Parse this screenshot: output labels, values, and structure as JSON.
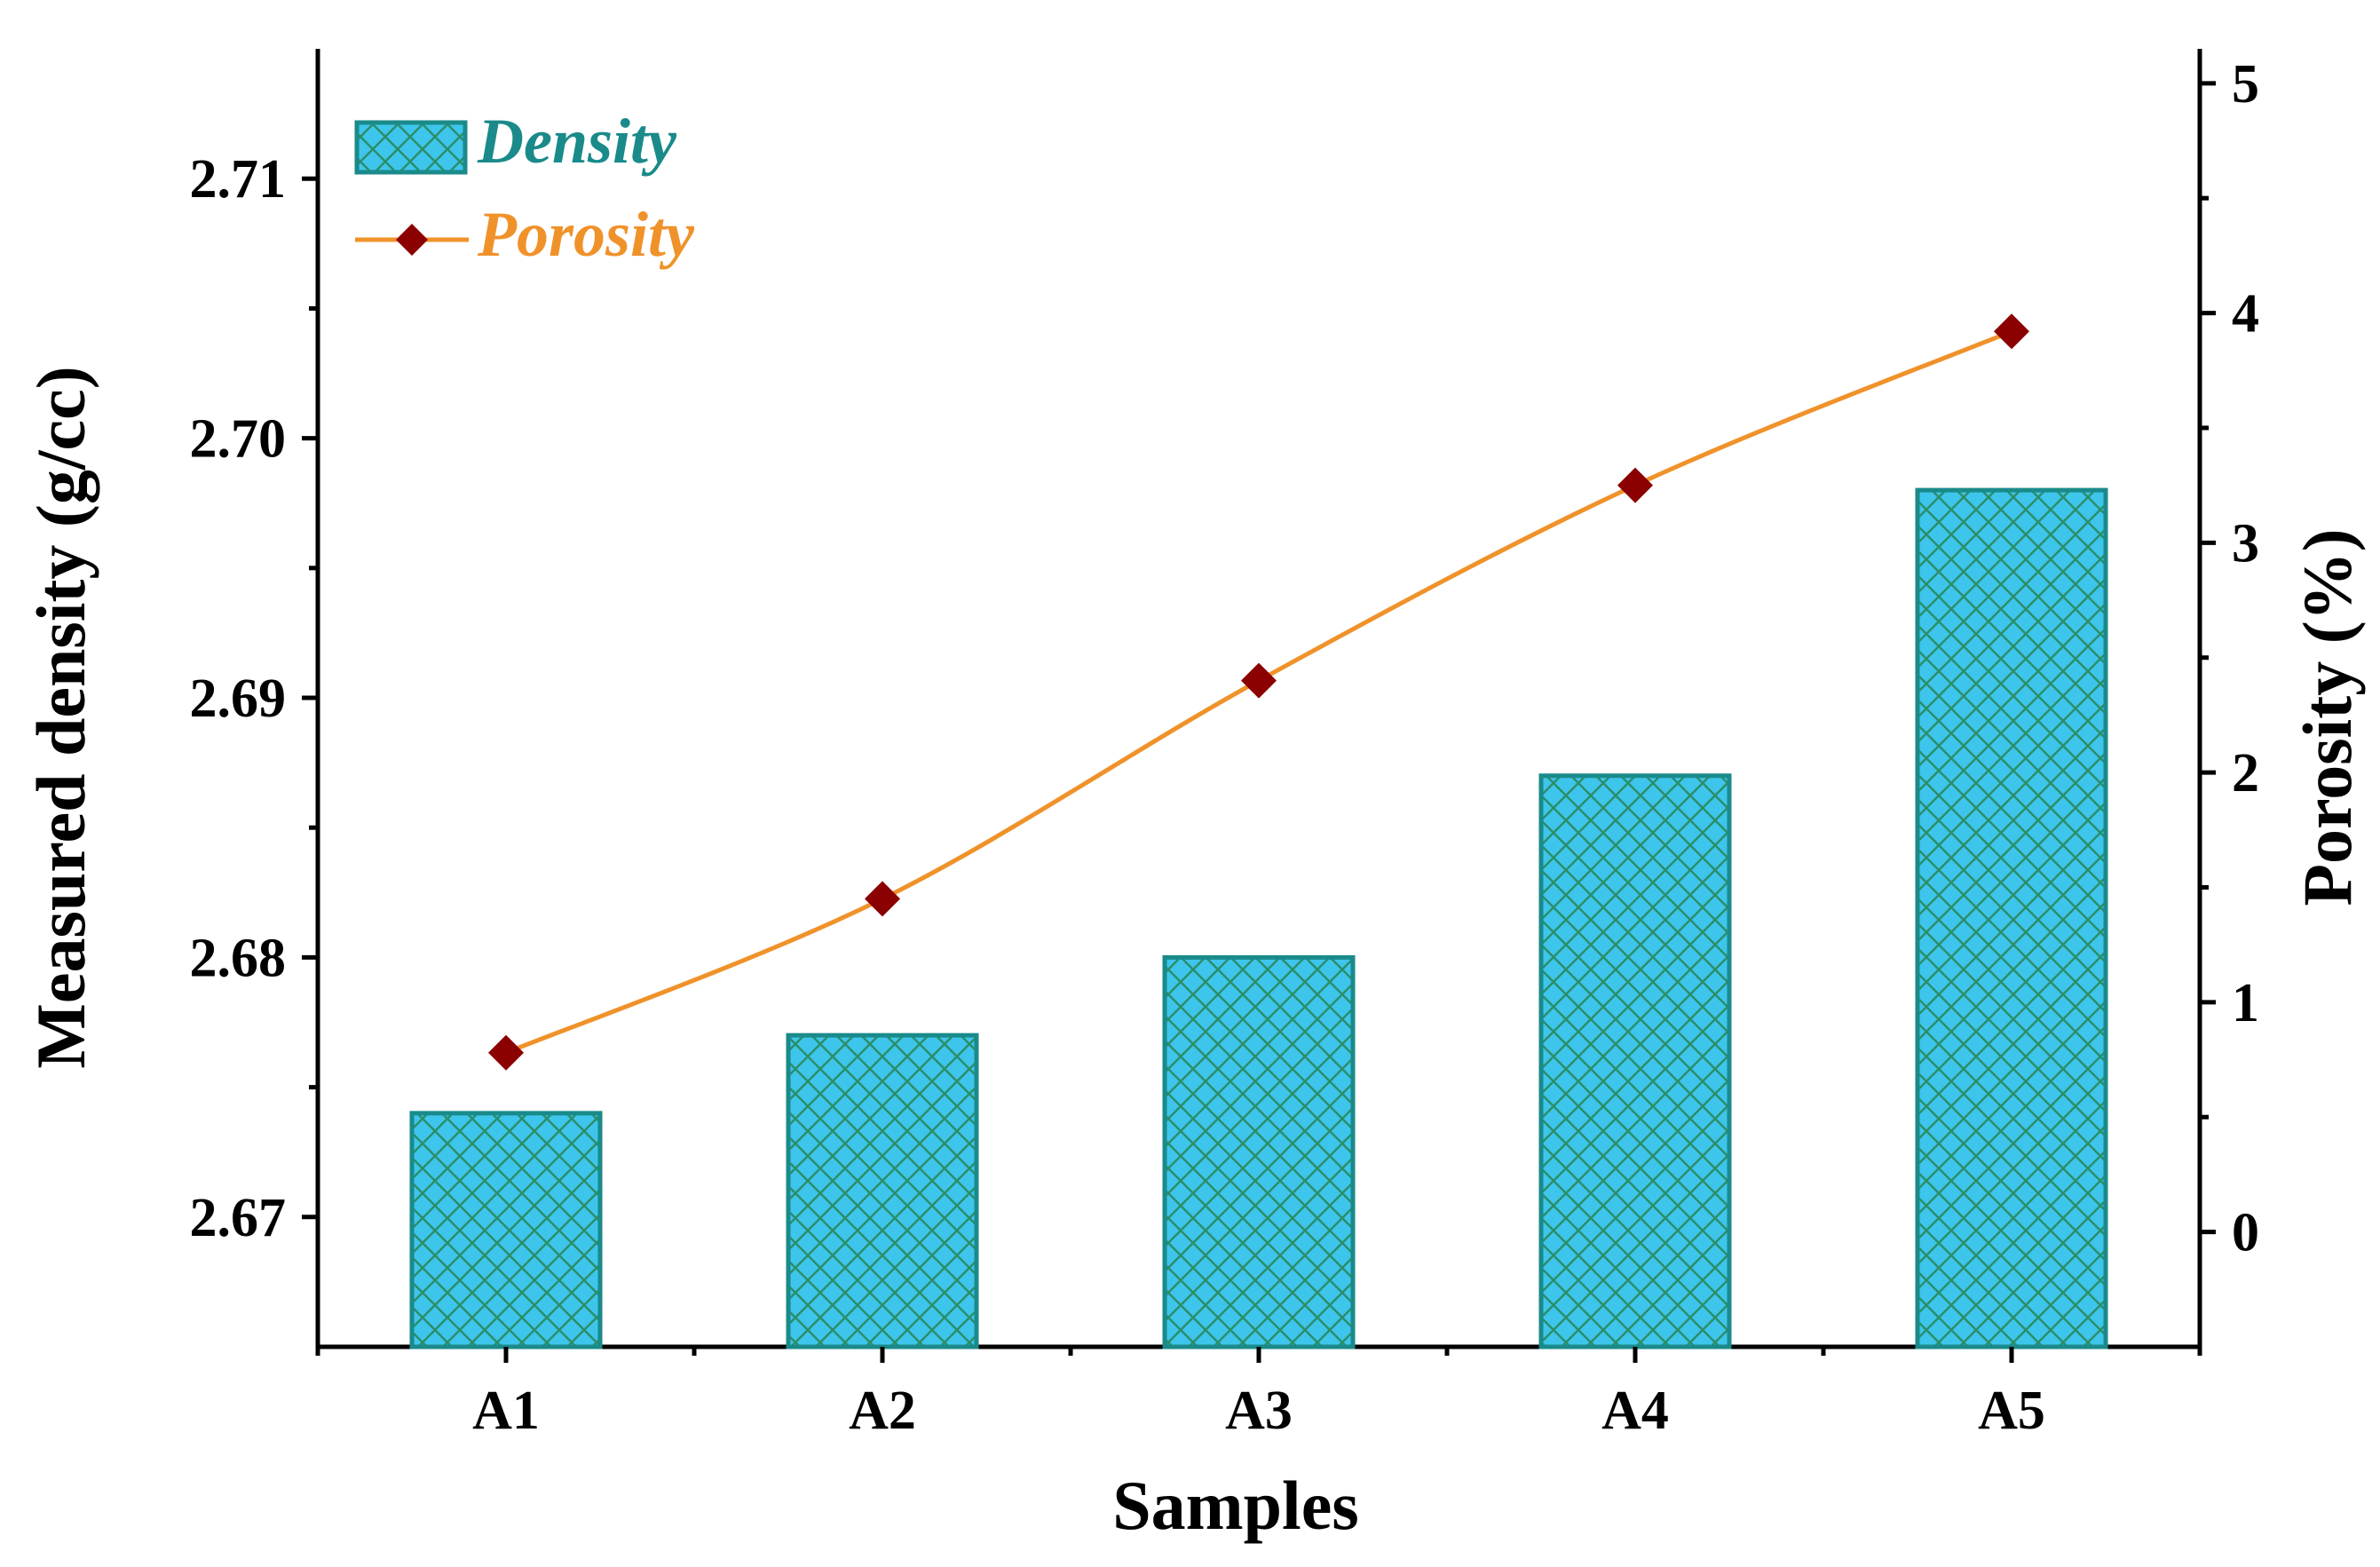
{
  "chart_data": {
    "type": "bar",
    "title": "",
    "xlabel": "Samples",
    "ylabel": "Measured density (g/cc)",
    "y2label": "Porosity (%)",
    "categories": [
      "A1",
      "A2",
      "A3",
      "A4",
      "A5"
    ],
    "series": [
      {
        "name": "Density",
        "type": "bar",
        "axis": "left",
        "values": [
          2.674,
          2.677,
          2.68,
          2.687,
          2.698
        ],
        "color": "#3ec5ec",
        "edge_color": "#1a8a8a",
        "hatch_color": "#2a8f6a"
      },
      {
        "name": "Porosity",
        "type": "line",
        "axis": "right",
        "values": [
          0.78,
          1.45,
          2.4,
          3.25,
          3.92
        ],
        "line_color": "#f0922a",
        "marker_color": "#8b0000",
        "marker": "diamond"
      }
    ],
    "ylim": [
      2.665,
      2.715
    ],
    "yticks": [
      "2.67",
      "2.68",
      "2.69",
      "2.70",
      "2.71"
    ],
    "y2lim": [
      -0.5,
      5.15
    ],
    "y2ticks": [
      "0",
      "1",
      "2",
      "3",
      "4",
      "5"
    ],
    "legend": {
      "position": "top-left",
      "density_label": "Density",
      "porosity_label": "Porosity",
      "density_color": "#1a8a8a",
      "porosity_color": "#f0922a"
    },
    "grid": false
  }
}
